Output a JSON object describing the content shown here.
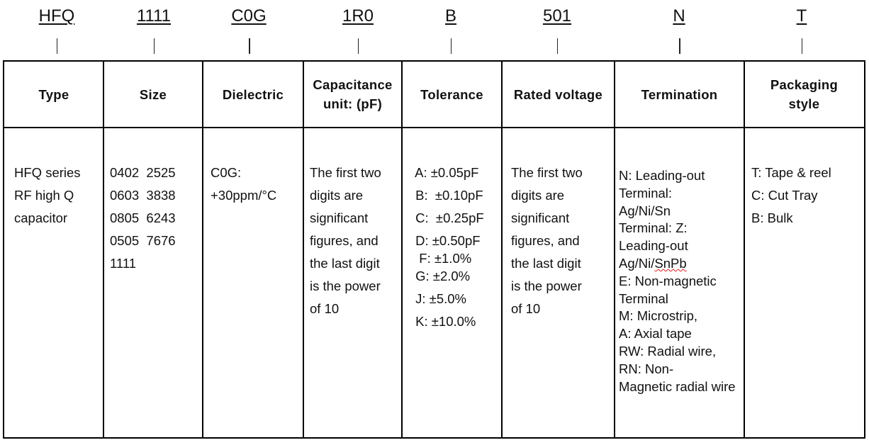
{
  "codes": [
    "HFQ",
    "1111",
    "C0G",
    "1R0",
    "B",
    "501",
    "N",
    "T"
  ],
  "columns": [
    {
      "header": "Type",
      "lines": [
        "HFQ series",
        "RF high Q",
        "capacitor"
      ]
    },
    {
      "header": "Size",
      "lines": [
        "0402  2525",
        "0603  3838",
        "0805  6243",
        "0505  7676",
        "1111"
      ]
    },
    {
      "header": "Dielectric",
      "lines": [
        "C0G:",
        "+30ppm/°C"
      ]
    },
    {
      "header": "Capacitance unit: (pF)",
      "lines": [
        "The first two",
        "digits are",
        "significant",
        "figures, and",
        "the last digit",
        "is the power",
        "of 10"
      ]
    },
    {
      "header": "Tolerance",
      "lines": [
        " A: ±0.05pF",
        " B:  ±0.10pF",
        " C:  ±0.25pF",
        " D: ±0.50pF",
        "  F: ±1.0%",
        " G: ±2.0%",
        " J: ±5.0%",
        " K: ±10.0%"
      ]
    },
    {
      "header": "Rated voltage",
      "lines": [
        "The first two",
        "digits are",
        "significant",
        "figures, and",
        "the last digit",
        "is the power",
        "of 10"
      ]
    },
    {
      "header": "Termination",
      "lines": [
        "N: Leading-out",
        "Terminal:",
        "Ag/Ni/Sn",
        "Terminal: Z:",
        "Leading-out",
        "Ag/Ni/SnPb",
        "E: Non-magnetic",
        "Terminal",
        "M: Microstrip,",
        "A: Axial tape",
        "RW: Radial wire,",
        "RN: Non-",
        "Magnetic radial wire"
      ]
    },
    {
      "header": "Packaging style",
      "lines": [
        "T: Tape & reel",
        "C: Cut Tray",
        "B: Bulk"
      ]
    }
  ]
}
